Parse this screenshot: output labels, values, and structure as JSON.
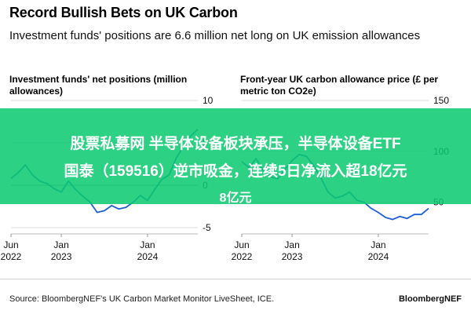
{
  "title": "Record Bullish Bets on UK Carbon",
  "subtitle": "Investment funds' positions are 6.6 million net long on UK emission allowances",
  "chart_data": [
    {
      "type": "line",
      "title": "Investment funds' net positions (million allowances)",
      "color": "#1f5fd6",
      "x": [
        "2022-06",
        "2022-07",
        "2022-08",
        "2022-09",
        "2022-10",
        "2022-11",
        "2022-12",
        "2023-01",
        "2023-02",
        "2023-03",
        "2023-04",
        "2023-05",
        "2023-06",
        "2023-07",
        "2023-08",
        "2023-09",
        "2023-10",
        "2023-11",
        "2023-12",
        "2024-01",
        "2024-02",
        "2024-03",
        "2024-04",
        "2024-05",
        "2024-06",
        "2024-07",
        "2024-08"
      ],
      "y": [
        0.8,
        1.5,
        2.4,
        1.2,
        0.5,
        0.2,
        -0.4,
        -0.8,
        0.5,
        -0.5,
        -1.3,
        -2.0,
        -3.2,
        -3.0,
        -2.4,
        -2.8,
        -2.6,
        -2.0,
        -1.2,
        -1.8,
        -0.5,
        0.7,
        1.2,
        3.2,
        4.6,
        5.8,
        6.6
      ],
      "y_ticks": [
        "10",
        "5",
        "0",
        "-5"
      ],
      "ylim": [
        -5,
        10
      ],
      "x_ticks": [
        {
          "label": "Jun",
          "sub": "2022",
          "x": "2022-06"
        },
        {
          "label": "Jan",
          "sub": "2023",
          "x": "2023-01"
        },
        {
          "label": "Jan",
          "sub": "2024",
          "x": "2024-01"
        }
      ]
    },
    {
      "type": "line",
      "title": "Front-year UK carbon allowance price (£ per metric ton CO2e)",
      "color": "#1f5fd6",
      "x": [
        "2022-06",
        "2022-07",
        "2022-08",
        "2022-09",
        "2022-10",
        "2022-11",
        "2022-12",
        "2023-01",
        "2023-02",
        "2023-03",
        "2023-04",
        "2023-05",
        "2023-06",
        "2023-07",
        "2023-08",
        "2023-09",
        "2023-10",
        "2023-11",
        "2023-12",
        "2024-01",
        "2024-02",
        "2024-03",
        "2024-04",
        "2024-05",
        "2024-06",
        "2024-07",
        "2024-08"
      ],
      "y": [
        90,
        84,
        93,
        80,
        75,
        73,
        82,
        91,
        97,
        95,
        86,
        74,
        60,
        54,
        56,
        60,
        52,
        50,
        44,
        40,
        35,
        33,
        36,
        34,
        38,
        38,
        44
      ],
      "y_ticks": [
        "150",
        "100",
        "50"
      ],
      "ylim": [
        25,
        150
      ],
      "x_ticks": [
        {
          "label": "Jun",
          "sub": "2022",
          "x": "2022-06"
        },
        {
          "label": "Jan",
          "sub": "2023",
          "x": "2023-01"
        },
        {
          "label": "Jan",
          "sub": "2024",
          "x": "2024-01"
        }
      ]
    }
  ],
  "overlay": {
    "line1": "股票私募网 半导体设备板块承压，半导体设备ETF",
    "line2": "国泰（159516）逆市吸金，连续5日净流入超18亿元",
    "line3": "8亿元"
  },
  "source": "Source: BloombergNEF's UK Carbon Market Monitor LiveSheet, ICE.",
  "brand": "BloombergNEF"
}
